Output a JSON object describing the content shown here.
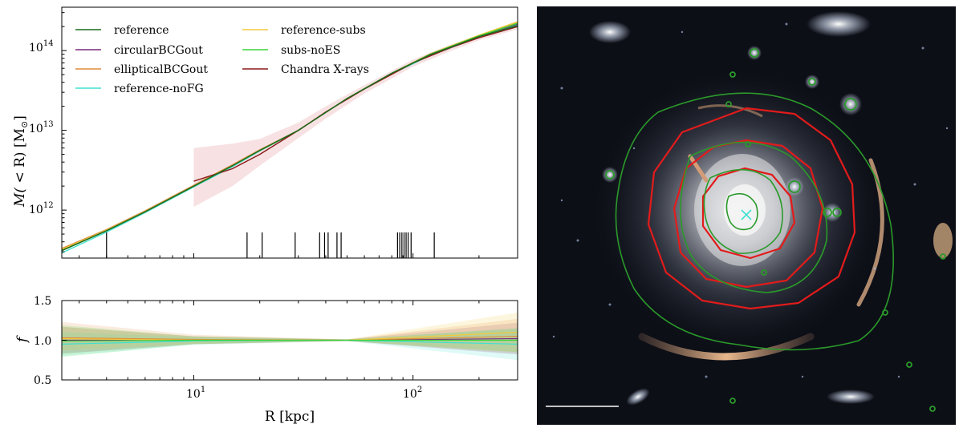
{
  "chart_data": [
    {
      "type": "line",
      "panel": "enclosed mass profile",
      "title": "",
      "xscale": "log",
      "yscale": "log",
      "xlim": [
        2.5,
        300
      ],
      "ylim": [
        250000000000.0,
        350000000000000.0
      ],
      "ylabel_parts": {
        "head": "M(",
        "mid": " < R) [M",
        "sun": "⊙",
        "tail": "]"
      },
      "y_ticks": [
        {
          "value": 1000000000000.0,
          "base": "10",
          "exp": "12"
        },
        {
          "value": 10000000000000.0,
          "base": "10",
          "exp": "13"
        },
        {
          "value": 100000000000000.0,
          "base": "10",
          "exp": "14"
        }
      ],
      "legend_position": "top-left",
      "series": [
        {
          "name": "reference",
          "color": "#1d6b1d",
          "x": [
            2.5,
            4,
            6,
            10,
            15,
            20,
            30,
            50,
            80,
            120,
            200,
            300
          ],
          "y": [
            310000000000.0,
            550000000000.0,
            950000000000.0,
            2000000000000.0,
            3600000000000.0,
            5600000000000.0,
            10000000000000.0,
            25000000000000.0,
            52000000000000.0,
            89000000000000.0,
            150000000000000.0,
            205000000000000.0
          ]
        },
        {
          "name": "circularBCGout",
          "color": "#7b2a7d",
          "x": [
            2.5,
            4,
            6,
            10,
            15,
            20,
            30,
            50,
            80,
            120,
            200,
            300
          ],
          "y": [
            310000000000.0,
            550000000000.0,
            950000000000.0,
            2000000000000.0,
            3600000000000.0,
            5600000000000.0,
            10000000000000.0,
            25000000000000.0,
            52000000000000.0,
            90000000000000.0,
            152000000000000.0,
            215000000000000.0
          ]
        },
        {
          "name": "ellipticalBCGout",
          "color": "#e08b3a",
          "x": [
            2.5,
            4,
            6,
            10,
            15,
            20,
            30,
            50,
            80,
            120,
            200,
            300
          ],
          "y": [
            330000000000.0,
            570000000000.0,
            980000000000.0,
            2050000000000.0,
            3700000000000.0,
            5700000000000.0,
            10000000000000.0,
            25000000000000.0,
            52000000000000.0,
            91000000000000.0,
            155000000000000.0,
            225000000000000.0
          ]
        },
        {
          "name": "reference-noFG",
          "color": "#40e0d0",
          "x": [
            2.5,
            4,
            6,
            10,
            15,
            20,
            30,
            50,
            80,
            120,
            200,
            300
          ],
          "y": [
            290000000000.0,
            530000000000.0,
            930000000000.0,
            1950000000000.0,
            3500000000000.0,
            5500000000000.0,
            10000000000000.0,
            25000000000000.0,
            51000000000000.0,
            87000000000000.0,
            147000000000000.0,
            210000000000000.0
          ]
        },
        {
          "name": "reference-subs",
          "color": "#f2c83a",
          "x": [
            2.5,
            4,
            6,
            10,
            15,
            20,
            30,
            50,
            80,
            120,
            200,
            300
          ],
          "y": [
            320000000000.0,
            560000000000.0,
            960000000000.0,
            2000000000000.0,
            3600000000000.0,
            5600000000000.0,
            10000000000000.0,
            25000000000000.0,
            52000000000000.0,
            91000000000000.0,
            156000000000000.0,
            230000000000000.0
          ]
        },
        {
          "name": "subs-noES",
          "color": "#39d339",
          "x": [
            2.5,
            4,
            6,
            10,
            15,
            20,
            30,
            50,
            80,
            120,
            200,
            300
          ],
          "y": [
            310000000000.0,
            550000000000.0,
            950000000000.0,
            2000000000000.0,
            3600000000000.0,
            5600000000000.0,
            10000000000000.0,
            25000000000000.0,
            52000000000000.0,
            90000000000000.0,
            153000000000000.0,
            220000000000000.0
          ]
        },
        {
          "name": "Chandra X-rays",
          "color": "#8b1a1a",
          "x": [
            10,
            15,
            20,
            30,
            40,
            60,
            100,
            150,
            200,
            300
          ],
          "y": [
            2300000000000.0,
            3300000000000.0,
            5000000000000.0,
            10000000000000.0,
            17000000000000.0,
            33000000000000.0,
            70000000000000.0,
            110000000000000.0,
            145000000000000.0,
            200000000000000.0
          ],
          "band_lower": [
            1100000000000.0,
            2000000000000.0,
            3600000000000.0,
            8000000000000.0,
            14000000000000.0,
            29000000000000.0,
            63000000000000.0,
            100000000000000.0,
            135000000000000.0,
            185000000000000.0
          ],
          "band_upper": [
            6000000000000.0,
            6800000000000.0,
            7800000000000.0,
            12500000000000.0,
            20000000000000.0,
            37000000000000.0,
            77000000000000.0,
            120000000000000.0,
            155000000000000.0,
            215000000000000.0
          ]
        }
      ],
      "rug_marks_kpc": [
        4.0,
        17.5,
        20.5,
        29,
        37.5,
        39.5,
        41,
        45,
        47,
        85,
        87,
        89,
        91,
        93,
        95,
        98,
        125
      ]
    },
    {
      "type": "line",
      "panel": "ratio",
      "xscale": "log",
      "xlim": [
        2.5,
        300
      ],
      "ylim": [
        0.5,
        1.5
      ],
      "xlabel": "R [kpc]",
      "ylabel": "f",
      "y_ticks": [
        "0.5",
        "1.0",
        "1.5"
      ],
      "x_ticks": [
        {
          "value": 10,
          "base": "10",
          "exp": "1"
        },
        {
          "value": 100,
          "base": "10",
          "exp": "2"
        }
      ],
      "reference_line": 1.0,
      "series": [
        {
          "name": "circularBCGout",
          "color": "#7b2a7d",
          "x": [
            2.5,
            10,
            50,
            300
          ],
          "y": [
            1.0,
            1.0,
            1.0,
            1.02
          ],
          "spread": [
            0.17,
            0.05,
            0.01,
            0.2
          ]
        },
        {
          "name": "ellipticalBCGout",
          "color": "#e08b3a",
          "x": [
            2.5,
            10,
            50,
            300
          ],
          "y": [
            1.03,
            1.01,
            1.0,
            1.05
          ],
          "spread": [
            0.2,
            0.06,
            0.01,
            0.22
          ]
        },
        {
          "name": "reference-noFG",
          "color": "#40e0d0",
          "x": [
            2.5,
            10,
            50,
            300
          ],
          "y": [
            0.95,
            0.99,
            1.0,
            0.95
          ],
          "spread": [
            0.15,
            0.05,
            0.01,
            0.2
          ]
        },
        {
          "name": "reference-subs",
          "color": "#f2c83a",
          "x": [
            2.5,
            10,
            50,
            300
          ],
          "y": [
            1.02,
            1.0,
            1.0,
            1.1
          ],
          "spread": [
            0.15,
            0.05,
            0.01,
            0.25
          ]
        },
        {
          "name": "subs-noES",
          "color": "#39d339",
          "x": [
            2.5,
            10,
            50,
            300
          ],
          "y": [
            0.99,
            1.0,
            1.0,
            1.0
          ],
          "spread": [
            0.2,
            0.05,
            0.01,
            0.15
          ]
        }
      ]
    }
  ],
  "image_panel": {
    "description_free": true,
    "contour_colors": {
      "lensing": "#2a9a2a",
      "xray": "#e02020",
      "center_marker": "#40e0d0"
    }
  }
}
